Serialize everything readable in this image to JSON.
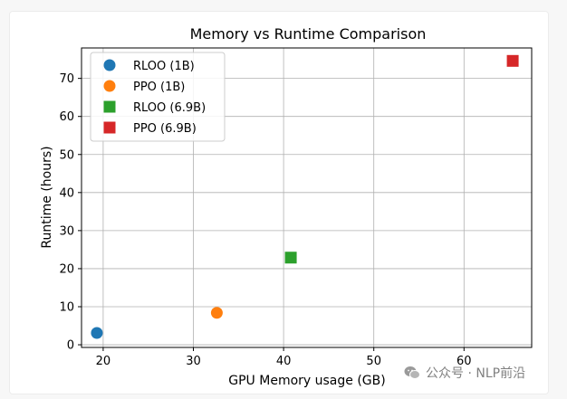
{
  "chart_data": {
    "type": "scatter",
    "title": "Memory vs Runtime Comparison",
    "xlabel": "GPU Memory usage (GB)",
    "ylabel": "Runtime (hours)",
    "xlim": [
      17.6,
      67.5
    ],
    "ylim": [
      -0.7,
      78.0
    ],
    "xticks": [
      20,
      30,
      40,
      50,
      60
    ],
    "yticks": [
      0,
      10,
      20,
      30,
      40,
      50,
      60,
      70
    ],
    "grid": true,
    "legend_position": "top-left",
    "series": [
      {
        "name": "RLOO (1B)",
        "marker": "circle",
        "color": "#1f77b4",
        "x": 19.3,
        "y": 3.1
      },
      {
        "name": "PPO (1B)",
        "marker": "circle",
        "color": "#ff7f0e",
        "x": 32.6,
        "y": 8.4
      },
      {
        "name": "RLOO (6.9B)",
        "marker": "square",
        "color": "#2ca02c",
        "x": 40.8,
        "y": 22.9
      },
      {
        "name": "PPO (6.9B)",
        "marker": "square",
        "color": "#d62728",
        "x": 65.4,
        "y": 74.6
      }
    ]
  },
  "watermark": {
    "icon": "wechat-icon",
    "text": "公众号 · NLP前沿"
  }
}
